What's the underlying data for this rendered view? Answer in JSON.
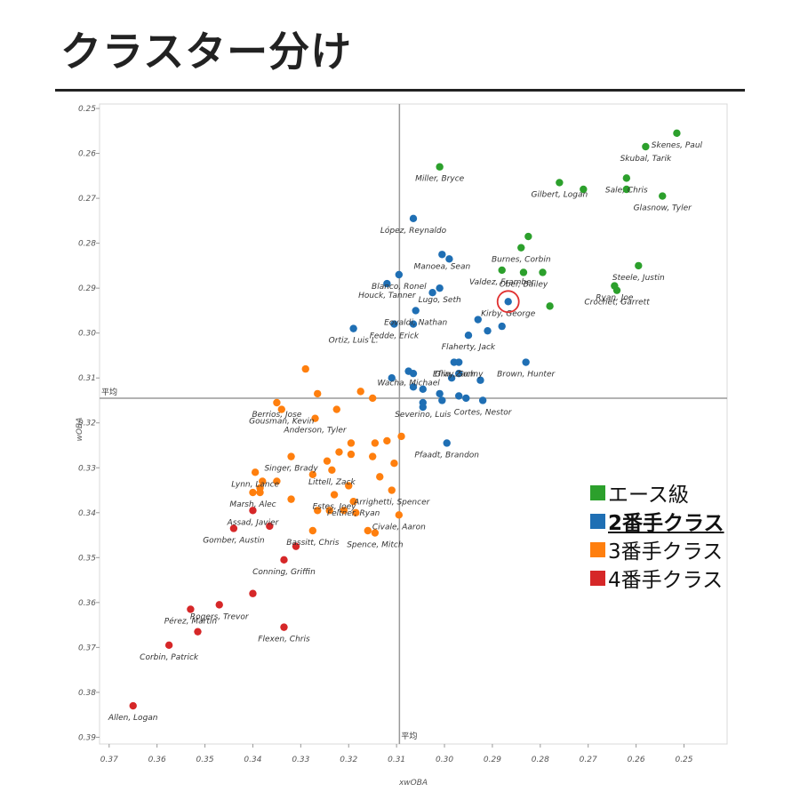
{
  "page": {
    "title": "クラスター分け"
  },
  "chart_data": {
    "type": "scatter",
    "xlabel": "xwOBA",
    "ylabel": "wOBA",
    "x_reversed": true,
    "y_reversed": true,
    "xlim": [
      0.241,
      0.372
    ],
    "ylim": [
      0.249,
      0.3915
    ],
    "x_ticks": [
      "0.37",
      "0.36",
      "0.35",
      "0.34",
      "0.33",
      "0.32",
      "0.31",
      "0.30",
      "0.29",
      "0.28",
      "0.27",
      "0.26",
      "0.25"
    ],
    "x_tick_values": [
      0.37,
      0.36,
      0.35,
      0.34,
      0.33,
      0.32,
      0.31,
      0.3,
      0.29,
      0.28,
      0.27,
      0.26,
      0.25
    ],
    "y_ticks": [
      "0.25",
      "0.26",
      "0.27",
      "0.28",
      "0.29",
      "0.30",
      "0.31",
      "0.32",
      "0.33",
      "0.34",
      "0.35",
      "0.36",
      "0.37",
      "0.38",
      "0.39"
    ],
    "y_tick_values": [
      0.25,
      0.26,
      0.27,
      0.28,
      0.29,
      0.3,
      0.31,
      0.32,
      0.33,
      0.34,
      0.35,
      0.36,
      0.37,
      0.38,
      0.39
    ],
    "reference_lines": {
      "x": 0.3094,
      "y": 0.3145,
      "x_label": "平均",
      "y_label": "平均"
    },
    "highlight": {
      "x": 0.2867,
      "y": 0.293,
      "color": "#e03030"
    },
    "legend": {
      "position": "bottom-right",
      "emphasized": "2番手クラス"
    },
    "series": [
      {
        "name": "エース級",
        "color": "#2ca02c",
        "points": [
          {
            "x": 0.2515,
            "y": 0.2555,
            "label": "Skenes, Paul"
          },
          {
            "x": 0.258,
            "y": 0.2585,
            "label": "Skubal, Tarik"
          },
          {
            "x": 0.262,
            "y": 0.2655,
            "label": "Sale, Chris"
          },
          {
            "x": 0.262,
            "y": 0.268,
            "label": ""
          },
          {
            "x": 0.2545,
            "y": 0.2695,
            "label": "Glasnow, Tyler"
          },
          {
            "x": 0.271,
            "y": 0.268,
            "label": ""
          },
          {
            "x": 0.276,
            "y": 0.2665,
            "label": "Gilbert, Logan"
          },
          {
            "x": 0.301,
            "y": 0.263,
            "label": "Miller, Bryce"
          },
          {
            "x": 0.2825,
            "y": 0.2785,
            "label": ""
          },
          {
            "x": 0.284,
            "y": 0.281,
            "label": "Burnes, Corbin"
          },
          {
            "x": 0.2595,
            "y": 0.285,
            "label": "Steele, Justin"
          },
          {
            "x": 0.2645,
            "y": 0.2895,
            "label": "Ryan, Joe"
          },
          {
            "x": 0.264,
            "y": 0.2905,
            "label": "Crochet, Garrett"
          },
          {
            "x": 0.288,
            "y": 0.286,
            "label": "Valdez, Framber"
          },
          {
            "x": 0.2835,
            "y": 0.2865,
            "label": "Ober, Bailey"
          },
          {
            "x": 0.2795,
            "y": 0.2865,
            "label": ""
          },
          {
            "x": 0.278,
            "y": 0.294,
            "label": ""
          }
        ]
      },
      {
        "name": "2番手クラス",
        "color": "#1f6fb4",
        "points": [
          {
            "x": 0.3065,
            "y": 0.2745,
            "label": "López, Reynaldo"
          },
          {
            "x": 0.3005,
            "y": 0.2825,
            "label": "Manoea, Sean"
          },
          {
            "x": 0.299,
            "y": 0.2835,
            "label": ""
          },
          {
            "x": 0.3095,
            "y": 0.287,
            "label": "Blanco, Ronel"
          },
          {
            "x": 0.312,
            "y": 0.289,
            "label": "Houck, Tanner"
          },
          {
            "x": 0.301,
            "y": 0.29,
            "label": "Lugo, Seth"
          },
          {
            "x": 0.3025,
            "y": 0.291,
            "label": ""
          },
          {
            "x": 0.2867,
            "y": 0.293,
            "label": "Kirby, George"
          },
          {
            "x": 0.306,
            "y": 0.295,
            "label": "Eovaldi, Nathan"
          },
          {
            "x": 0.293,
            "y": 0.297,
            "label": ""
          },
          {
            "x": 0.288,
            "y": 0.2985,
            "label": ""
          },
          {
            "x": 0.319,
            "y": 0.299,
            "label": "Ortiz, Luis L."
          },
          {
            "x": 0.3105,
            "y": 0.298,
            "label": "Fedde, Erick"
          },
          {
            "x": 0.3065,
            "y": 0.298,
            "label": ""
          },
          {
            "x": 0.291,
            "y": 0.2995,
            "label": ""
          },
          {
            "x": 0.295,
            "y": 0.3005,
            "label": "Flaherty, Jack"
          },
          {
            "x": 0.298,
            "y": 0.3065,
            "label": "Eflin, Zach"
          },
          {
            "x": 0.297,
            "y": 0.3065,
            "label": "Gray, Sonny"
          },
          {
            "x": 0.283,
            "y": 0.3065,
            "label": "Brown, Hunter"
          },
          {
            "x": 0.3075,
            "y": 0.3085,
            "label": "Wacha, Michael"
          },
          {
            "x": 0.3065,
            "y": 0.309,
            "label": ""
          },
          {
            "x": 0.297,
            "y": 0.309,
            "label": ""
          },
          {
            "x": 0.2985,
            "y": 0.31,
            "label": ""
          },
          {
            "x": 0.311,
            "y": 0.31,
            "label": ""
          },
          {
            "x": 0.2925,
            "y": 0.3105,
            "label": ""
          },
          {
            "x": 0.3065,
            "y": 0.312,
            "label": ""
          },
          {
            "x": 0.3045,
            "y": 0.3125,
            "label": ""
          },
          {
            "x": 0.301,
            "y": 0.3135,
            "label": ""
          },
          {
            "x": 0.297,
            "y": 0.314,
            "label": ""
          },
          {
            "x": 0.2955,
            "y": 0.3145,
            "label": ""
          },
          {
            "x": 0.3005,
            "y": 0.315,
            "label": ""
          },
          {
            "x": 0.3045,
            "y": 0.3155,
            "label": "Severino, Luis"
          },
          {
            "x": 0.3045,
            "y": 0.3165,
            "label": ""
          },
          {
            "x": 0.292,
            "y": 0.315,
            "label": "Cortes, Nestor"
          },
          {
            "x": 0.2995,
            "y": 0.3245,
            "label": "Pfaadt, Brandon"
          }
        ]
      },
      {
        "name": "3番手クラス",
        "color": "#ff7f0e",
        "points": [
          {
            "x": 0.329,
            "y": 0.308,
            "label": ""
          },
          {
            "x": 0.3265,
            "y": 0.3135,
            "label": ""
          },
          {
            "x": 0.3175,
            "y": 0.313,
            "label": ""
          },
          {
            "x": 0.315,
            "y": 0.3145,
            "label": ""
          },
          {
            "x": 0.335,
            "y": 0.3155,
            "label": "Berrios, Jose"
          },
          {
            "x": 0.334,
            "y": 0.317,
            "label": "Gousman, Kevin"
          },
          {
            "x": 0.3225,
            "y": 0.317,
            "label": ""
          },
          {
            "x": 0.327,
            "y": 0.319,
            "label": "Anderson, Tyler"
          },
          {
            "x": 0.309,
            "y": 0.323,
            "label": ""
          },
          {
            "x": 0.312,
            "y": 0.324,
            "label": ""
          },
          {
            "x": 0.3145,
            "y": 0.3245,
            "label": ""
          },
          {
            "x": 0.3195,
            "y": 0.3245,
            "label": ""
          },
          {
            "x": 0.322,
            "y": 0.3265,
            "label": ""
          },
          {
            "x": 0.3195,
            "y": 0.327,
            "label": ""
          },
          {
            "x": 0.315,
            "y": 0.3275,
            "label": ""
          },
          {
            "x": 0.332,
            "y": 0.3275,
            "label": "Singer, Brady"
          },
          {
            "x": 0.3245,
            "y": 0.3285,
            "label": ""
          },
          {
            "x": 0.3105,
            "y": 0.329,
            "label": ""
          },
          {
            "x": 0.3235,
            "y": 0.3305,
            "label": "Littell, Zack"
          },
          {
            "x": 0.3395,
            "y": 0.331,
            "label": "Lynn, Lance"
          },
          {
            "x": 0.3275,
            "y": 0.3315,
            "label": ""
          },
          {
            "x": 0.3135,
            "y": 0.332,
            "label": ""
          },
          {
            "x": 0.338,
            "y": 0.333,
            "label": ""
          },
          {
            "x": 0.335,
            "y": 0.333,
            "label": ""
          },
          {
            "x": 0.3385,
            "y": 0.3345,
            "label": ""
          },
          {
            "x": 0.32,
            "y": 0.334,
            "label": ""
          },
          {
            "x": 0.311,
            "y": 0.335,
            "label": "Arrighetti, Spencer"
          },
          {
            "x": 0.34,
            "y": 0.3355,
            "label": "Marsh, Alec"
          },
          {
            "x": 0.3385,
            "y": 0.3355,
            "label": ""
          },
          {
            "x": 0.323,
            "y": 0.336,
            "label": "Estes, Joey"
          },
          {
            "x": 0.332,
            "y": 0.337,
            "label": ""
          },
          {
            "x": 0.319,
            "y": 0.3375,
            "label": "Feltner, Ryan"
          },
          {
            "x": 0.3265,
            "y": 0.3395,
            "label": ""
          },
          {
            "x": 0.324,
            "y": 0.3395,
            "label": ""
          },
          {
            "x": 0.321,
            "y": 0.3395,
            "label": ""
          },
          {
            "x": 0.3185,
            "y": 0.34,
            "label": ""
          },
          {
            "x": 0.3095,
            "y": 0.3405,
            "label": "Civale, Aaron"
          },
          {
            "x": 0.3275,
            "y": 0.344,
            "label": "Bassitt, Chris"
          },
          {
            "x": 0.316,
            "y": 0.344,
            "label": ""
          },
          {
            "x": 0.3145,
            "y": 0.3445,
            "label": "Spence, Mitch"
          }
        ]
      },
      {
        "name": "4番手クラス",
        "color": "#d62728",
        "points": [
          {
            "x": 0.34,
            "y": 0.3395,
            "label": "Assad, Javier"
          },
          {
            "x": 0.344,
            "y": 0.3435,
            "label": "Gomber, Austin"
          },
          {
            "x": 0.3365,
            "y": 0.343,
            "label": ""
          },
          {
            "x": 0.331,
            "y": 0.3475,
            "label": ""
          },
          {
            "x": 0.3335,
            "y": 0.3505,
            "label": "Conning, Griffin"
          },
          {
            "x": 0.34,
            "y": 0.358,
            "label": ""
          },
          {
            "x": 0.353,
            "y": 0.3615,
            "label": "Pérez, Martín"
          },
          {
            "x": 0.347,
            "y": 0.3605,
            "label": "Rogers, Trevor"
          },
          {
            "x": 0.3335,
            "y": 0.3655,
            "label": "Flexen, Chris"
          },
          {
            "x": 0.3515,
            "y": 0.3665,
            "label": ""
          },
          {
            "x": 0.3575,
            "y": 0.3695,
            "label": "Corbin, Patrick"
          },
          {
            "x": 0.365,
            "y": 0.383,
            "label": "Allen, Logan"
          }
        ]
      }
    ]
  }
}
